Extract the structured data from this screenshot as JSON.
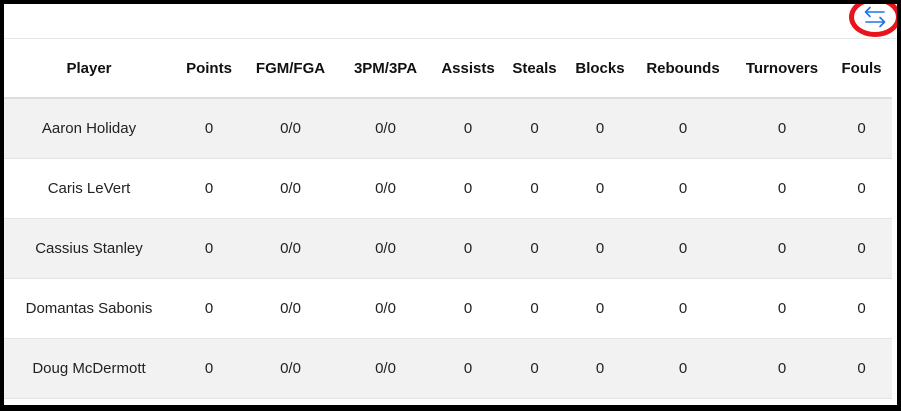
{
  "toolbar": {
    "toggle_icon": "swap-arrows-icon",
    "accent_color": "#1e73e8",
    "highlight_color": "#e8141b"
  },
  "table": {
    "columns": [
      "Player",
      "Points",
      "FGM/FGA",
      "3PM/3PA",
      "Assists",
      "Steals",
      "Blocks",
      "Rebounds",
      "Turnovers",
      "Fouls"
    ],
    "rows": [
      [
        "Aaron Holiday",
        "0",
        "0/0",
        "0/0",
        "0",
        "0",
        "0",
        "0",
        "0",
        "0"
      ],
      [
        "Caris LeVert",
        "0",
        "0/0",
        "0/0",
        "0",
        "0",
        "0",
        "0",
        "0",
        "0"
      ],
      [
        "Cassius Stanley",
        "0",
        "0/0",
        "0/0",
        "0",
        "0",
        "0",
        "0",
        "0",
        "0"
      ],
      [
        "Domantas Sabonis",
        "0",
        "0/0",
        "0/0",
        "0",
        "0",
        "0",
        "0",
        "0",
        "0"
      ],
      [
        "Doug McDermott",
        "0",
        "0/0",
        "0/0",
        "0",
        "0",
        "0",
        "0",
        "0",
        "0"
      ]
    ]
  }
}
